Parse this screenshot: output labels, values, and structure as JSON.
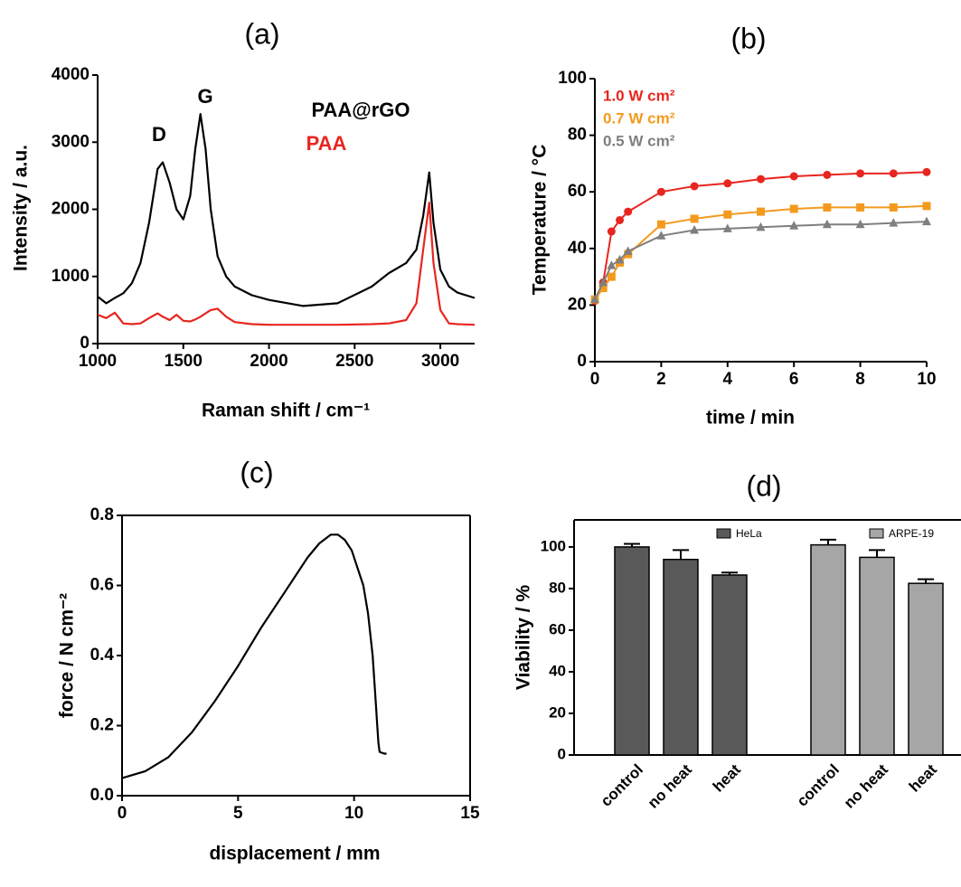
{
  "chart_data": [
    {
      "type": "line",
      "title": "(a)",
      "x_label": "Raman shift / cm⁻¹",
      "y_label": "Intensity / a.u.",
      "annotations": [
        "D",
        "G"
      ],
      "x": [
        1000,
        1050,
        1100,
        1150,
        1200,
        1250,
        1300,
        1350,
        1380,
        1420,
        1460,
        1500,
        1540,
        1570,
        1600,
        1630,
        1660,
        1700,
        1750,
        1800,
        1900,
        2000,
        2200,
        2400,
        2600,
        2700,
        2800,
        2860,
        2900,
        2935,
        2960,
        3000,
        3050,
        3100,
        3200
      ],
      "series": [
        {
          "name": "PAA@rGO",
          "color": "#000000",
          "values": [
            700,
            600,
            680,
            750,
            900,
            1200,
            1800,
            2600,
            2700,
            2400,
            2000,
            1850,
            2200,
            2900,
            3420,
            2900,
            2000,
            1300,
            1000,
            850,
            720,
            650,
            560,
            600,
            850,
            1050,
            1200,
            1400,
            1900,
            2550,
            1800,
            1100,
            850,
            760,
            680
          ]
        },
        {
          "name": "PAA",
          "color": "#e8251f",
          "values": [
            430,
            380,
            460,
            300,
            290,
            300,
            380,
            450,
            400,
            350,
            430,
            340,
            330,
            360,
            400,
            450,
            500,
            520,
            400,
            320,
            290,
            280,
            280,
            280,
            290,
            300,
            350,
            600,
            1400,
            2100,
            1200,
            500,
            300,
            290,
            280
          ]
        }
      ],
      "xlim": [
        1000,
        3200
      ],
      "xticks": [
        1000,
        1500,
        2000,
        2500,
        3000
      ],
      "ylim": [
        0,
        4000
      ],
      "yticks": [
        0,
        1000,
        2000,
        3000,
        4000
      ]
    },
    {
      "type": "line",
      "title": "(b)",
      "x_label": "time / min",
      "y_label": "Temperature / °C",
      "x": [
        0,
        0.25,
        0.5,
        0.75,
        1,
        2,
        3,
        4,
        5,
        6,
        7,
        8,
        9,
        10
      ],
      "series": [
        {
          "name": "1.0 W cm²",
          "color": "#e8251f",
          "marker": "circle",
          "values": [
            21.5,
            28,
            46,
            50,
            53,
            60,
            62,
            63,
            64.5,
            65.5,
            66,
            66.5,
            66.5,
            67
          ]
        },
        {
          "name": "0.7 W cm²",
          "color": "#f39a1e",
          "marker": "square",
          "values": [
            22,
            26,
            30,
            35,
            38,
            48.5,
            50.5,
            52,
            53,
            54,
            54.5,
            54.5,
            54.5,
            55
          ]
        },
        {
          "name": "0.5 W cm²",
          "color": "#7f7f7f",
          "marker": "triangle",
          "values": [
            22,
            28,
            34,
            36,
            39,
            44.5,
            46.5,
            47,
            47.5,
            48,
            48.5,
            48.5,
            49,
            49.5
          ]
        }
      ],
      "xlim": [
        0,
        10
      ],
      "xticks": [
        0,
        2,
        4,
        6,
        8,
        10
      ],
      "ylim": [
        0,
        100
      ],
      "yticks": [
        0,
        20,
        40,
        60,
        80,
        100
      ]
    },
    {
      "type": "line",
      "title": "(c)",
      "x_label": "displacement / mm",
      "y_label": "force / N cm⁻²",
      "x": [
        0,
        1,
        2,
        3,
        4,
        5,
        6,
        7,
        8,
        8.5,
        9,
        9.3,
        9.6,
        9.9,
        10.1,
        10.4,
        10.6,
        10.8,
        10.9,
        11,
        11.05,
        11.1,
        11.3,
        11.4
      ],
      "series": [
        {
          "color": "#000000",
          "values": [
            0.05,
            0.07,
            0.11,
            0.18,
            0.27,
            0.37,
            0.48,
            0.58,
            0.68,
            0.72,
            0.745,
            0.745,
            0.73,
            0.7,
            0.66,
            0.6,
            0.52,
            0.4,
            0.3,
            0.2,
            0.15,
            0.125,
            0.12,
            0.12
          ]
        }
      ],
      "xlim": [
        0,
        15
      ],
      "xticks": [
        0,
        5,
        10,
        15
      ],
      "ylim": [
        0,
        0.8
      ],
      "yticks": [
        {
          "value": 0,
          "label": "0.0"
        },
        0.2,
        0.4,
        0.6,
        0.8
      ]
    },
    {
      "type": "bar",
      "title": "(d)",
      "y_label": "Viability / %",
      "categories": [
        "control",
        "no heat",
        "heat"
      ],
      "series": [
        {
          "name": "HeLa",
          "color": "#595959",
          "values": [
            100,
            94,
            86.5
          ],
          "errors": [
            1.5,
            4.5,
            1.2
          ]
        },
        {
          "name": "ARPE-19",
          "color": "#a6a6a6",
          "values": [
            101,
            95,
            82.5
          ],
          "errors": [
            2.5,
            3.5,
            2
          ]
        }
      ],
      "ylim": [
        0,
        113
      ],
      "yticks": [
        0,
        20,
        40,
        60,
        80,
        100
      ]
    }
  ]
}
